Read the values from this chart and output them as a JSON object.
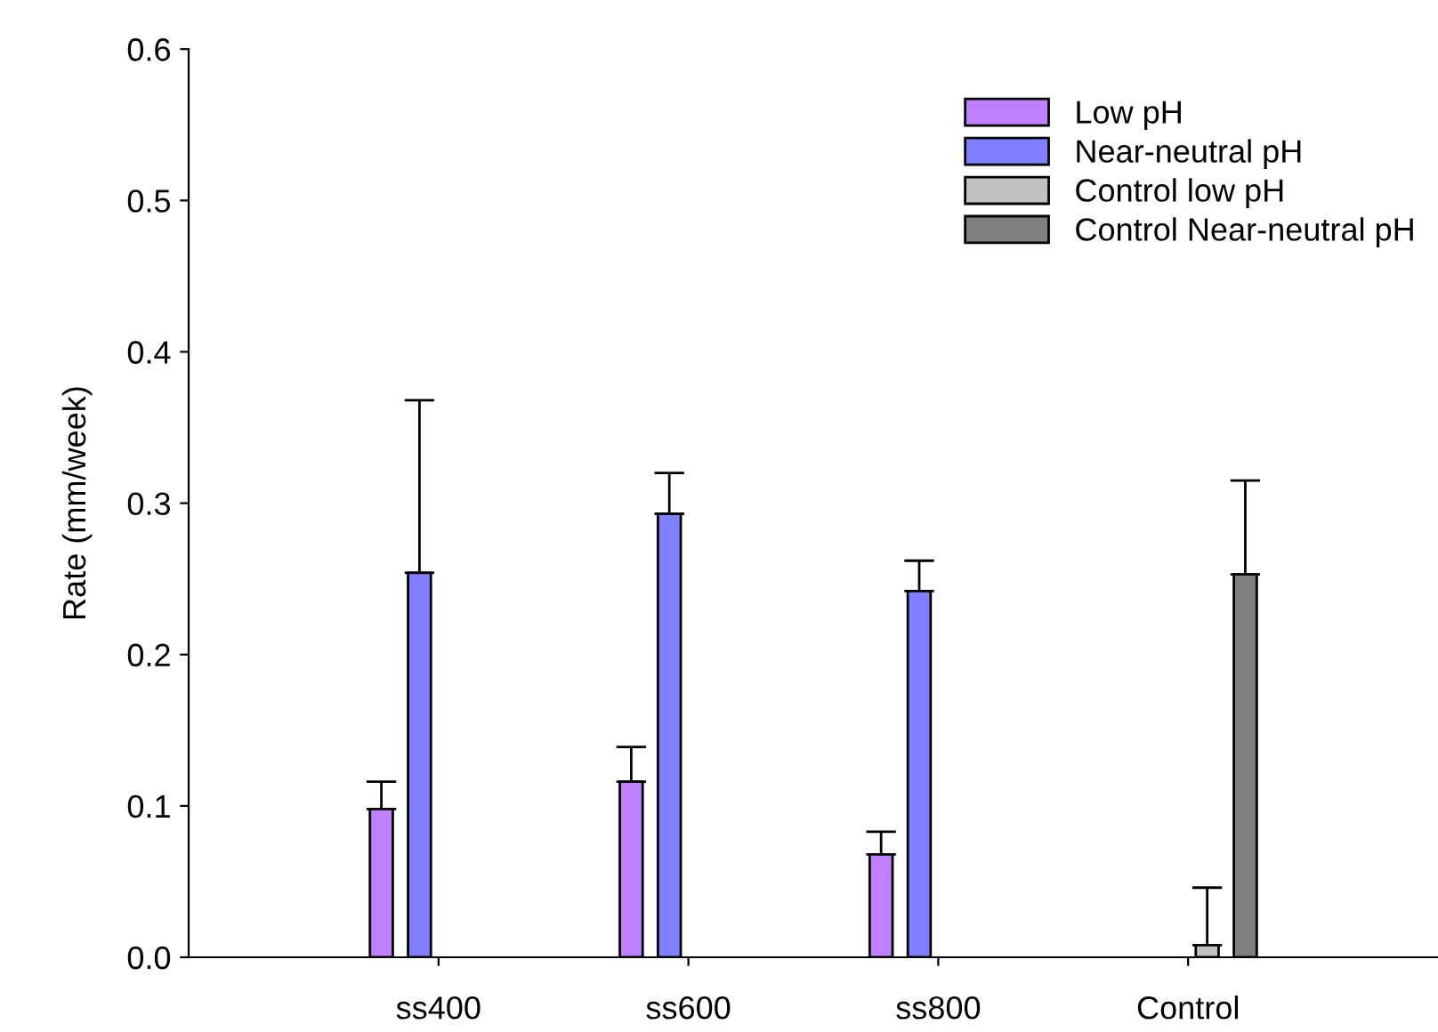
{
  "chart_data": {
    "type": "bar",
    "ylabel": "Rate (mm/week)",
    "categories": [
      "ss400",
      "ss600",
      "ss800",
      "Control"
    ],
    "series": [
      {
        "name": "Low pH",
        "color": "#c080ff",
        "values": [
          0.098,
          0.116,
          0.068,
          null
        ],
        "errors": [
          [
            0.098,
            0.116
          ],
          [
            0.116,
            0.139
          ],
          [
            0.068,
            0.083
          ],
          null
        ]
      },
      {
        "name": "Near-neutral pH",
        "color": "#8080ff",
        "values": [
          0.254,
          0.293,
          0.242,
          null
        ],
        "errors": [
          [
            0.254,
            0.368
          ],
          [
            0.293,
            0.32
          ],
          [
            0.242,
            0.262
          ],
          null
        ]
      },
      {
        "name": "Control low pH",
        "color": "#c0c0c0",
        "values": [
          null,
          null,
          null,
          0.008
        ],
        "errors": [
          null,
          null,
          null,
          [
            0.008,
            0.046
          ]
        ]
      },
      {
        "name": "Control Near-neutral pH",
        "color": "#808080",
        "values": [
          null,
          null,
          null,
          0.253
        ],
        "errors": [
          null,
          null,
          null,
          [
            0.253,
            0.315
          ]
        ]
      }
    ],
    "ylim": [
      0,
      0.6
    ],
    "yticks": [
      {
        "value": 0,
        "label": "0.0"
      },
      0.1,
      0.2,
      0.3,
      0.4,
      0.5,
      0.6
    ],
    "grid": false,
    "legend": "top right"
  }
}
